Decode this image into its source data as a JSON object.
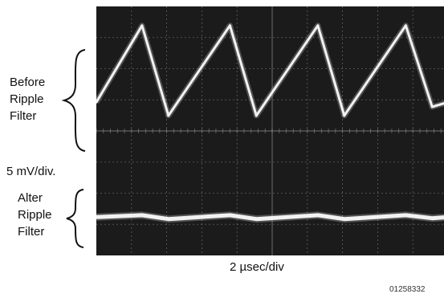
{
  "labels": {
    "before_line1": "Before",
    "before_line2": "Ripple",
    "before_line3": "Filter",
    "scale": "5  mV/div.",
    "after_line1": "Alter",
    "after_line2": "Ripple",
    "after_line3": "Filter",
    "time_scale": "2 µsec/div",
    "doc_id": "01258332"
  },
  "chart_data": {
    "type": "line",
    "title": "",
    "xlabel": "2 µsec/div",
    "ylabel": "5  mV/div.",
    "grid": true,
    "xlim": [
      0,
      20
    ],
    "ylim": [
      -40,
      25
    ],
    "grid_divisions": {
      "x": 10,
      "y": 8
    },
    "colors": {
      "screen": "#1b1b1b",
      "trace": "#f2f2f2",
      "grid": "#9a9a9a"
    },
    "series": [
      {
        "name": "Before Ripple Filter",
        "x": [
          0,
          2.6,
          4.1,
          7.6,
          9.1,
          12.6,
          14.1,
          17.6,
          19.1,
          20
        ],
        "y": [
          0,
          20,
          -3.5,
          20,
          -3.5,
          20,
          -3.5,
          20,
          -1.2,
          0
        ]
      },
      {
        "name": "Alter Ripple Filter",
        "x": [
          0,
          2.6,
          4.1,
          7.6,
          9.1,
          12.6,
          14.1,
          17.6,
          19.1,
          20
        ],
        "y": [
          -30,
          -29.5,
          -30.5,
          -29.5,
          -30.5,
          -29.5,
          -30.5,
          -29.5,
          -30.3,
          -30
        ]
      }
    ]
  }
}
